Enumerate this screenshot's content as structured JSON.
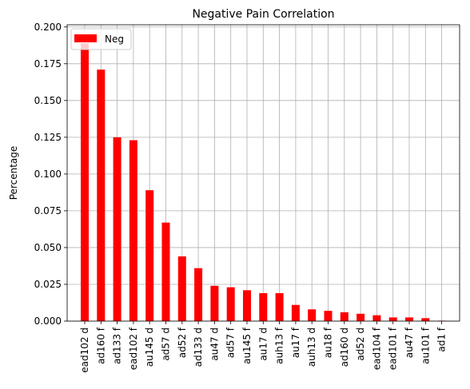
{
  "chart_data": {
    "type": "bar",
    "title": "Negative Pain Correlation",
    "xlabel": "",
    "ylabel": "Percentage",
    "ylim": [
      0,
      0.2
    ],
    "yticks": [
      "0.000",
      "0.025",
      "0.050",
      "0.075",
      "0.100",
      "0.125",
      "0.150",
      "0.175",
      "0.200"
    ],
    "grid": true,
    "legend_position": "upper-left",
    "categories": [
      "ead102 d",
      "ad160 f",
      "ad133 f",
      "ead102 f",
      "au145 d",
      "ad57 d",
      "ad52 f",
      "ad133 d",
      "au47 d",
      "ad57 f",
      "au145 f",
      "au17 d",
      "auh13 f",
      "au17 f",
      "auh13 d",
      "au18 f",
      "ad160 d",
      "ad52 d",
      "ead104 f",
      "ead101 f",
      "au47 f",
      "au101 f",
      "ad1 f"
    ],
    "series": [
      {
        "name": "Neg",
        "color": "#ff0000",
        "values": [
          0.189,
          0.171,
          0.125,
          0.123,
          0.089,
          0.067,
          0.044,
          0.036,
          0.024,
          0.023,
          0.021,
          0.019,
          0.019,
          0.011,
          0.008,
          0.007,
          0.006,
          0.005,
          0.004,
          0.0025,
          0.0025,
          0.002,
          0.0003
        ]
      }
    ]
  }
}
